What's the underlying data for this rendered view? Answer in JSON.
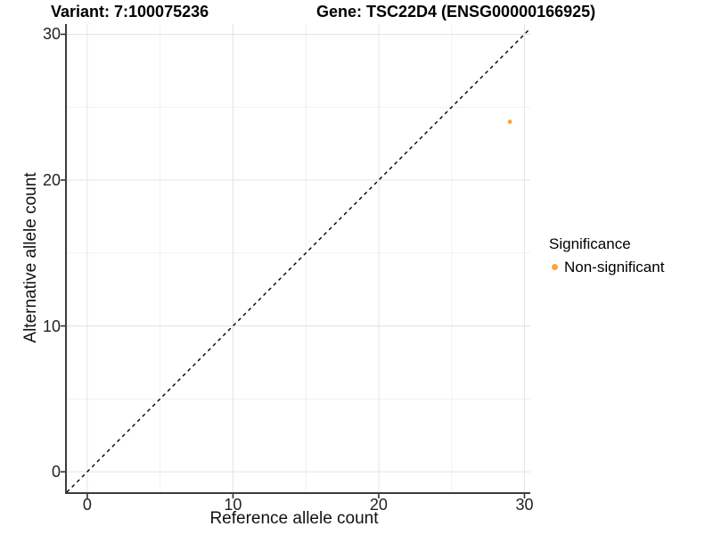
{
  "figure": {
    "title_left": "Variant: 7:100075236",
    "title_right": "Gene: TSC22D4 (ENSG00000166925)"
  },
  "chart_data": {
    "type": "scatter",
    "title": "Variant: 7:100075236   Gene: TSC22D4 (ENSG00000166925)",
    "xlabel": "Reference allele count",
    "ylabel": "Alternative allele count",
    "xlim": [
      -1.4,
      30.4
    ],
    "ylim": [
      -1.4,
      30.7
    ],
    "x_ticks": [
      0,
      10,
      20,
      30
    ],
    "y_ticks": [
      0,
      10,
      20,
      30
    ],
    "x_minor_ticks": [
      5,
      15,
      25
    ],
    "y_minor_ticks": [
      5,
      15,
      25
    ],
    "grid": "on (major + minor, light grey, white panel)",
    "series": [
      {
        "name": "Non-significant",
        "color": "#FFA33C",
        "points": [
          {
            "x": 29,
            "y": 24
          }
        ]
      }
    ],
    "reference_line": {
      "kind": "identity y = x",
      "style": "dashed",
      "color": "#000000"
    },
    "legend": {
      "title": "Significance",
      "position": "right",
      "entries": [
        {
          "label": "Non-significant",
          "color": "#FFA33C"
        }
      ]
    },
    "colors": {
      "grid_major": "#e3e3e3",
      "grid_minor": "#f1f1f1",
      "axis_line": "#3c3c3c",
      "tick_mark": "#333333",
      "tick_text": "#222222"
    }
  }
}
